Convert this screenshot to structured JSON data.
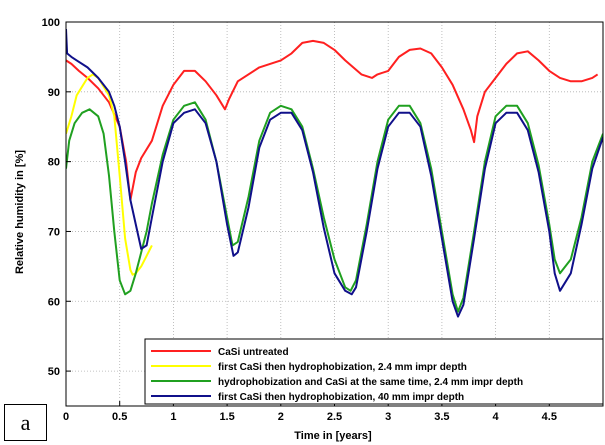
{
  "panel_label": "a",
  "chart_data": {
    "type": "line",
    "xlabel": "Time in [years]",
    "ylabel": "Relative humidity in [%]",
    "xlim": [
      0,
      5
    ],
    "ylim": [
      45,
      100
    ],
    "xticks": [
      0,
      0.5,
      1,
      1.5,
      2,
      2.5,
      3,
      3.5,
      4,
      4.5
    ],
    "xtick_labels": [
      "0",
      "0.5",
      "1",
      "1.5",
      "2",
      "2.5",
      "3",
      "3.5",
      "4",
      "4.5"
    ],
    "yticks": [
      50,
      60,
      70,
      80,
      90,
      100
    ],
    "ytick_labels": [
      "50",
      "60",
      "70",
      "80",
      "90",
      "100"
    ],
    "grid": true,
    "legend_position": "bottom-right",
    "series": [
      {
        "name": "CaSi untreated",
        "color": "#ff2020",
        "x": [
          0.0,
          0.05,
          0.12,
          0.2,
          0.3,
          0.4,
          0.5,
          0.56,
          0.6,
          0.65,
          0.7,
          0.8,
          0.9,
          1.0,
          1.1,
          1.2,
          1.3,
          1.4,
          1.48,
          1.52,
          1.6,
          1.8,
          2.0,
          2.1,
          2.2,
          2.3,
          2.4,
          2.5,
          2.6,
          2.75,
          2.85,
          2.9,
          3.0,
          3.1,
          3.2,
          3.3,
          3.4,
          3.5,
          3.6,
          3.7,
          3.77,
          3.8,
          3.83,
          3.9,
          4.0,
          4.1,
          4.2,
          4.3,
          4.4,
          4.5,
          4.6,
          4.7,
          4.8,
          4.9,
          4.95
        ],
        "y": [
          94.5,
          94.0,
          93.0,
          92.0,
          90.5,
          88.5,
          85.0,
          80.0,
          74.5,
          78.5,
          80.5,
          83.0,
          88.0,
          91.0,
          93.0,
          93.0,
          91.5,
          89.5,
          87.5,
          89.0,
          91.5,
          93.5,
          94.5,
          95.5,
          97.0,
          97.3,
          97.0,
          96.0,
          94.5,
          92.5,
          92.0,
          92.5,
          93.0,
          95.0,
          96.0,
          96.2,
          95.5,
          93.5,
          91.0,
          87.5,
          84.5,
          82.8,
          86.5,
          90.0,
          92.0,
          94.0,
          95.5,
          95.8,
          94.5,
          93.0,
          92.0,
          91.5,
          91.5,
          92.0,
          92.5
        ]
      },
      {
        "name": "first CaSi then hydrophobization, 2.4 mm impr depth",
        "color": "#ffff00",
        "x": [
          0.0,
          0.05,
          0.1,
          0.2,
          0.25,
          0.3,
          0.4,
          0.45,
          0.5,
          0.55,
          0.6,
          0.62,
          0.65,
          0.7,
          0.75,
          0.8
        ],
        "y": [
          84.0,
          86.5,
          89.5,
          92.0,
          92.5,
          92.0,
          89.5,
          86.5,
          78.0,
          69.0,
          64.5,
          63.8,
          64.0,
          65.0,
          66.5,
          68.0
        ]
      },
      {
        "name": "hydrophobization and CaSi at the same time, 2.4 mm impr depth",
        "color": "#20a020",
        "x": [
          0.0,
          0.03,
          0.08,
          0.15,
          0.22,
          0.3,
          0.35,
          0.4,
          0.45,
          0.5,
          0.55,
          0.6,
          0.65,
          0.7,
          0.75,
          0.8,
          0.9,
          1.0,
          1.1,
          1.2,
          1.3,
          1.4,
          1.5,
          1.55,
          1.6,
          1.7,
          1.8,
          1.9,
          2.0,
          2.1,
          2.2,
          2.3,
          2.4,
          2.5,
          2.6,
          2.65,
          2.7,
          2.8,
          2.9,
          3.0,
          3.1,
          3.2,
          3.3,
          3.4,
          3.5,
          3.6,
          3.65,
          3.7,
          3.8,
          3.9,
          4.0,
          4.1,
          4.2,
          4.3,
          4.4,
          4.5,
          4.55,
          4.6,
          4.7,
          4.8,
          4.9,
          5.0
        ],
        "y": [
          79.0,
          83.0,
          85.5,
          87.0,
          87.5,
          86.5,
          84.0,
          78.0,
          70.0,
          63.0,
          61.0,
          61.5,
          64.0,
          67.0,
          70.0,
          74.0,
          81.0,
          86.0,
          88.0,
          88.5,
          86.0,
          80.0,
          72.0,
          68.0,
          68.5,
          75.0,
          83.0,
          87.0,
          88.0,
          87.5,
          85.0,
          79.0,
          72.0,
          66.0,
          62.0,
          61.5,
          63.0,
          71.0,
          80.0,
          86.0,
          88.0,
          88.0,
          85.5,
          79.0,
          70.0,
          61.0,
          58.5,
          60.5,
          70.0,
          80.0,
          86.5,
          88.0,
          88.0,
          85.5,
          79.5,
          71.0,
          66.0,
          64.0,
          66.0,
          72.0,
          80.0,
          84.0
        ]
      },
      {
        "name": "first CaSi then hydrophobization, 40 mm impr depth",
        "color": "#10108a",
        "x": [
          0.0,
          0.01,
          0.05,
          0.1,
          0.2,
          0.3,
          0.4,
          0.45,
          0.5,
          0.55,
          0.6,
          0.65,
          0.7,
          0.75,
          0.8,
          0.9,
          1.0,
          1.1,
          1.2,
          1.3,
          1.4,
          1.5,
          1.56,
          1.6,
          1.7,
          1.8,
          1.9,
          2.0,
          2.1,
          2.2,
          2.3,
          2.4,
          2.5,
          2.6,
          2.66,
          2.7,
          2.8,
          2.9,
          3.0,
          3.1,
          3.2,
          3.3,
          3.4,
          3.5,
          3.6,
          3.65,
          3.7,
          3.8,
          3.9,
          4.0,
          4.1,
          4.2,
          4.3,
          4.4,
          4.5,
          4.55,
          4.6,
          4.7,
          4.8,
          4.9,
          5.0
        ],
        "y": [
          99.0,
          95.5,
          95.0,
          94.5,
          93.5,
          92.0,
          90.0,
          88.0,
          85.0,
          80.0,
          74.5,
          71.0,
          67.5,
          68.0,
          72.0,
          80.0,
          85.5,
          87.0,
          87.5,
          85.5,
          80.0,
          71.0,
          66.5,
          67.0,
          73.5,
          82.0,
          86.0,
          87.0,
          87.0,
          84.5,
          78.5,
          70.5,
          64.0,
          61.5,
          61.0,
          62.0,
          70.0,
          79.0,
          85.0,
          87.0,
          87.0,
          85.0,
          78.0,
          69.0,
          60.0,
          57.8,
          59.5,
          69.0,
          79.0,
          85.5,
          87.0,
          87.0,
          84.5,
          78.5,
          70.0,
          64.0,
          61.5,
          64.0,
          71.0,
          79.0,
          83.5
        ]
      }
    ]
  }
}
